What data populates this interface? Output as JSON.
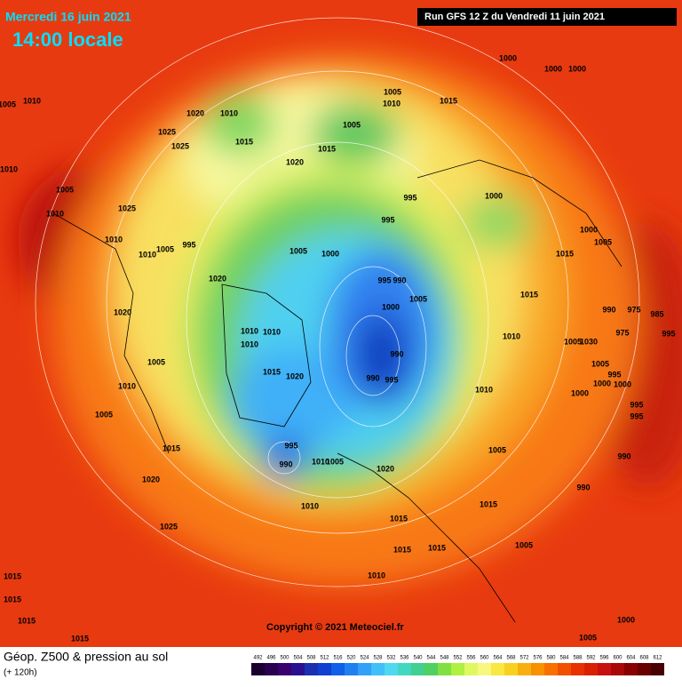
{
  "header": {
    "date": "Mercredi 16 juin 2021",
    "time": "14:00 locale",
    "run": "Run GFS 12 Z du Vendredi 11 juin 2021"
  },
  "map_labels": [
    "1005",
    "1010",
    "1010",
    "1005",
    "1010",
    "1025",
    "1010",
    "1010",
    "1005",
    "995",
    "1020",
    "1020",
    "1005",
    "1010",
    "1005",
    "1015",
    "1020",
    "1025",
    "1015",
    "1015",
    "1015",
    "1015",
    "1020",
    "1010",
    "1025",
    "1025",
    "1015",
    "1020",
    "1005",
    "1010",
    "1005",
    "1015",
    "1015",
    "1000",
    "1000",
    "1000",
    "995",
    "1000",
    "995",
    "1005",
    "1000",
    "995",
    "990",
    "1000",
    "1005",
    "990",
    "990",
    "995",
    "1010",
    "1010",
    "1010",
    "1015",
    "1020",
    "995",
    "990",
    "1010",
    "1005",
    "1020",
    "1010",
    "1015",
    "1015",
    "1015",
    "1010",
    "1015",
    "1005",
    "1010",
    "1010",
    "1015",
    "1015",
    "1000",
    "1005",
    "990",
    "975",
    "985",
    "995",
    "1005",
    "1030",
    "975",
    "1005",
    "995",
    "1000",
    "1000",
    "1000",
    "995",
    "995",
    "990",
    "990",
    "1005",
    "1000",
    "1005"
  ],
  "footer": {
    "title": "Géop. Z500 & pression au sol",
    "lead": "(+ 120h)",
    "copyright": "Copyright © 2021 Meteociel.fr"
  },
  "legend": {
    "labels": [
      492,
      496,
      500,
      504,
      508,
      512,
      516,
      520,
      524,
      528,
      532,
      536,
      540,
      544,
      548,
      552,
      556,
      560,
      564,
      568,
      572,
      576,
      580,
      584,
      588,
      592,
      596,
      600,
      604,
      608,
      612
    ],
    "colors": [
      "#1a0030",
      "#2a0050",
      "#3a0070",
      "#2a1090",
      "#1a30b0",
      "#1040d0",
      "#1060e8",
      "#2080f0",
      "#30a0f8",
      "#40c0f8",
      "#50d8f0",
      "#40d8c0",
      "#40d090",
      "#50d060",
      "#80e040",
      "#b0f040",
      "#e0f860",
      "#f8f880",
      "#f8e840",
      "#f8d020",
      "#f8b010",
      "#f89000",
      "#f87000",
      "#f05000",
      "#e83000",
      "#d82000",
      "#c81010",
      "#a80808",
      "#880000",
      "#680000",
      "#480000"
    ]
  }
}
